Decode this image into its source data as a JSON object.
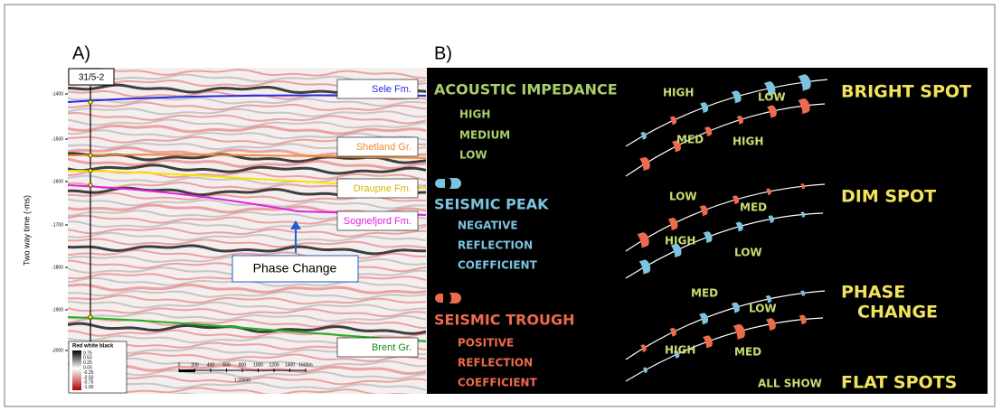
{
  "panel_a": {
    "label": "A)",
    "well": "31/5-2",
    "y_axis_title": "Two way time (-ms)",
    "y_tick_labels": [
      "-1400",
      "-1500",
      "-1600",
      "-1700",
      "-1800",
      "-1900",
      "-2000"
    ],
    "horizons": [
      "Sele Fm.",
      "Shetland Gr.",
      "Draupne Fm.",
      "Sognefjord Fm.",
      "Brent Gr."
    ],
    "annotation": "Phase Change",
    "colorbar": {
      "title": "Red white black",
      "labels": [
        "0.75",
        "0.50",
        "0.25",
        "0.00",
        "-0.25",
        "-0.50",
        "-0.75",
        "-1.00"
      ]
    },
    "scale_bar": {
      "labels": [
        "0",
        "200",
        "400",
        "600",
        "800",
        "1000",
        "1200",
        "1400",
        "1600m"
      ],
      "ratio": "1:20000"
    }
  },
  "panel_b": {
    "label": "B)",
    "impedance": {
      "title": "ACOUSTIC IMPEDANCE",
      "items": [
        "HIGH",
        "MEDIUM",
        "LOW"
      ]
    },
    "peak": {
      "title": "SEISMIC PEAK",
      "items": [
        "NEGATIVE",
        "REFLECTION",
        "COEFFICIENT"
      ]
    },
    "trough": {
      "title": "SEISMIC TROUGH",
      "items": [
        "POSITIVE",
        "REFLECTION",
        "COEFFICIENT"
      ]
    },
    "cases": [
      {
        "title": [
          "BRIGHT SPOT"
        ],
        "labels": [
          "HIGH",
          "LOW",
          "MED",
          "HIGH"
        ]
      },
      {
        "title": [
          "DIM SPOT"
        ],
        "labels": [
          "LOW",
          "MED",
          "HIGH",
          "LOW"
        ]
      },
      {
        "title": [
          "PHASE",
          "CHANGE"
        ],
        "labels": [
          "MED",
          "LOW",
          "HIGH",
          "MED"
        ]
      }
    ],
    "all_show": "ALL SHOW",
    "flat_spots": "FLAT SPOTS"
  }
}
